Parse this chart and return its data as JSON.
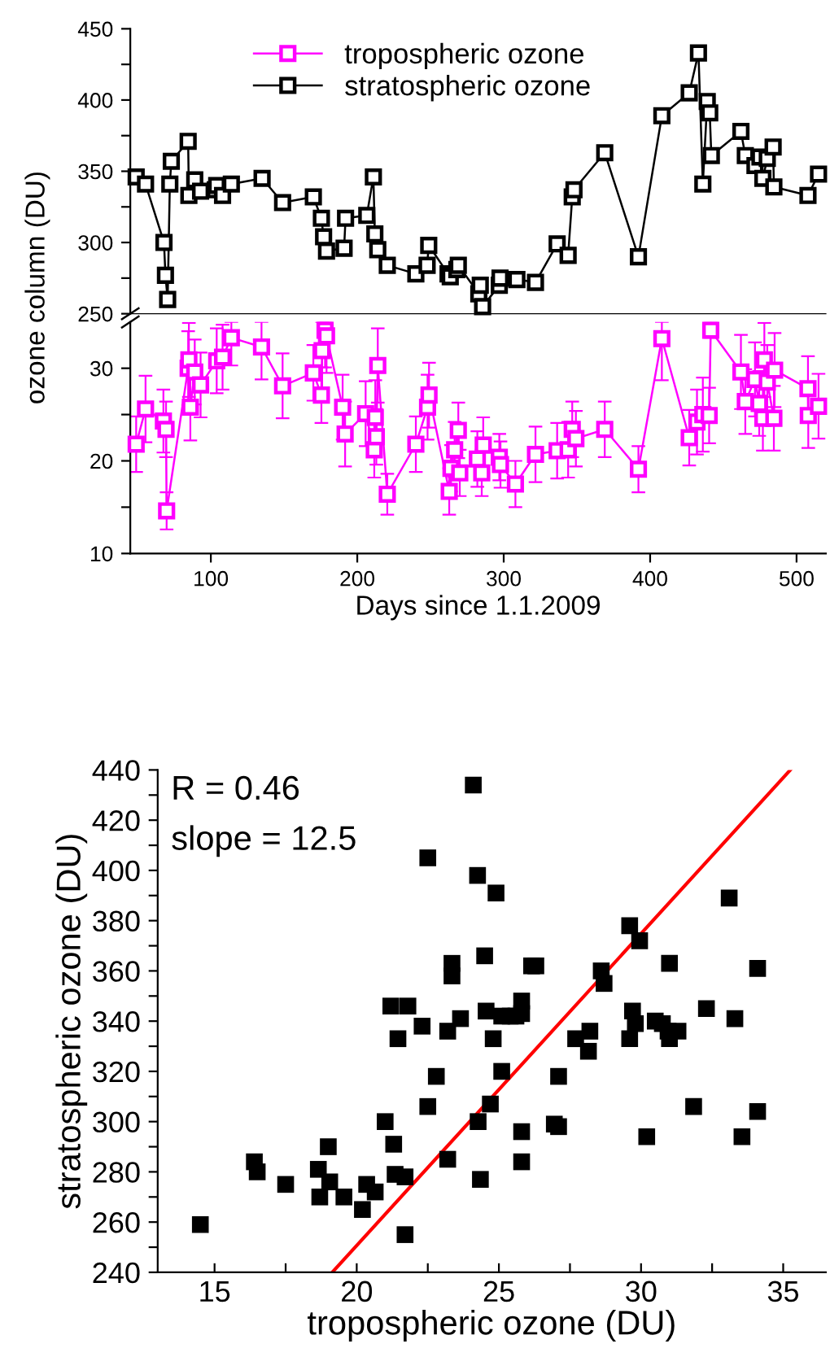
{
  "chart_data": [
    {
      "type": "line",
      "ylabel": "ozone column (DU)",
      "legend": "top",
      "marker": "square",
      "grid": false,
      "tick_labels": "y",
      "xlim": [
        45,
        520
      ],
      "xticks": [
        100,
        200,
        300,
        400,
        500
      ],
      "ylim": [
        250,
        450
      ],
      "yticks": [
        250,
        {
          "value": 275,
          "label": null
        },
        300,
        {
          "value": 325,
          "label": null
        },
        350,
        {
          "value": 375,
          "label": null
        },
        400,
        {
          "value": 425,
          "label": null
        },
        450
      ],
      "series": [
        {
          "name": "stratospheric ozone",
          "color": "#000000",
          "x": [
            49,
            55.4,
            68,
            69,
            70.5,
            72,
            73,
            84.5,
            85,
            89,
            93,
            103,
            104,
            108,
            114,
            135,
            149,
            170,
            175.5,
            177,
            179,
            191,
            192,
            206.5,
            211,
            212,
            214,
            220.5,
            240,
            247.7,
            248.8,
            262,
            263.5,
            268,
            269,
            283,
            284,
            285.6,
            297,
            297.5,
            309,
            321.7,
            336.5,
            344,
            346.8,
            348,
            369,
            392,
            408,
            426.7,
            433,
            436,
            439,
            440.7,
            441.8,
            462,
            465,
            471.6,
            475,
            477,
            480,
            484,
            484.5,
            507.8,
            515
          ],
          "values": [
            346,
            341,
            300,
            277,
            260,
            341,
            357,
            371,
            333,
            344,
            336,
            337,
            340,
            333,
            341,
            345,
            328,
            332,
            317,
            304,
            294,
            296,
            317,
            319,
            346,
            306,
            295,
            284,
            278,
            284,
            298,
            278,
            276,
            281,
            284,
            264,
            270,
            255,
            270,
            275,
            274,
            272,
            299,
            291,
            332,
            337,
            363,
            290,
            389,
            405,
            433,
            341,
            399,
            391,
            361,
            378,
            361,
            354,
            360,
            345,
            359,
            367,
            339,
            333,
            348
          ]
        }
      ]
    },
    {
      "type": "line",
      "xlabel": "Days since 1.1.2009",
      "marker": "square",
      "grid": false,
      "xlim": [
        45,
        520
      ],
      "xticks": [
        100,
        200,
        300,
        400,
        500
      ],
      "ylim": [
        10,
        35
      ],
      "yticks": [
        10,
        {
          "value": 15,
          "label": null
        },
        20,
        {
          "value": 25,
          "label": null
        },
        30
      ],
      "series": [
        {
          "name": "tropospheric ozone",
          "color": "#ff00ff",
          "x": [
            49,
            55.4,
            67.6,
            69.4,
            69.8,
            84.5,
            85,
            86,
            89,
            93,
            104,
            108,
            114,
            134.6,
            149,
            170,
            175.5,
            176,
            178,
            179,
            190,
            191.7,
            205.7,
            211.6,
            212.3,
            213,
            214,
            220.5,
            240,
            248,
            249,
            262.8,
            264,
            266.5,
            269,
            270,
            282,
            285,
            286,
            297,
            297.8,
            308,
            321.7,
            336.5,
            344,
            346.8,
            349.3,
            369,
            392,
            408,
            426.7,
            432,
            436,
            440.3,
            441.4,
            462,
            465,
            471.6,
            474.5,
            477,
            478,
            480,
            484.5,
            485,
            507.8,
            508,
            515
          ],
          "values": [
            21.8,
            25.6,
            24.3,
            23.4,
            14.6,
            30,
            30.9,
            25.8,
            29.6,
            28.2,
            30.8,
            31.2,
            33.3,
            32.3,
            28.1,
            29.5,
            27.1,
            31.9,
            34.1,
            33.5,
            25.8,
            22.9,
            25.1,
            21.2,
            24.7,
            22.6,
            30.3,
            16.4,
            21.8,
            25.8,
            27.1,
            16.7,
            19.2,
            21.2,
            23.3,
            18.7,
            20.2,
            18.7,
            21.7,
            20.4,
            19.6,
            17.5,
            20.7,
            21.1,
            21.2,
            23.4,
            22.4,
            23.4,
            19.1,
            33.2,
            22.5,
            24.2,
            25,
            24.9,
            34.1,
            29.6,
            26.4,
            28.8,
            26.2,
            24.6,
            30.9,
            28.5,
            24.6,
            29.8,
            27.8,
            24.9,
            25.9
          ],
          "errors": [
            3,
            3.6,
            3.4,
            3,
            2,
            4,
            4,
            3.6,
            3.5,
            3.5,
            3.5,
            3.5,
            [
              30.3,
              35
            ],
            [
              28.8,
              35
            ],
            3.5,
            3,
            3,
            [
              27.9,
              35
            ],
            [
              30.1,
              35
            ],
            [
              29.5,
              35
            ],
            3.5,
            3.5,
            3.5,
            3,
            4,
            3,
            4,
            2.2,
            3,
            3.5,
            3.5,
            2.5,
            2.5,
            3,
            3,
            2.5,
            3,
            2.5,
            3,
            2.5,
            2.5,
            2.5,
            3,
            3,
            3,
            3,
            3,
            3,
            2.5,
            [
              28.7,
              35
            ],
            3,
            3.5,
            4,
            3,
            [
              33.3,
              35
            ],
            4,
            3.5,
            4,
            3.5,
            3.5,
            4,
            4,
            3.5,
            4,
            3.5,
            3.5,
            3.5
          ]
        }
      ]
    },
    {
      "type": "scatter",
      "xlabel": "tropospheric ozone (DU)",
      "ylabel": "stratospheric ozone (DU)",
      "grid": false,
      "annotations": [
        "R = 0.46",
        "slope = 12.5"
      ],
      "xlim": [
        13,
        36.5
      ],
      "xticks": [
        15,
        {
          "value": 17.5,
          "label": null
        },
        20,
        {
          "value": 22.5,
          "label": null
        },
        25,
        {
          "value": 27.5,
          "label": null
        },
        30,
        {
          "value": 32.5,
          "label": null
        },
        35
      ],
      "ylim": [
        240,
        440
      ],
      "yticks": [
        240,
        {
          "value": 250,
          "label": null
        },
        260,
        {
          "value": 270,
          "label": null
        },
        280,
        {
          "value": 290,
          "label": null
        },
        300,
        {
          "value": 310,
          "label": null
        },
        320,
        {
          "value": 330,
          "label": null
        },
        340,
        {
          "value": 350,
          "label": null
        },
        360,
        {
          "value": 370,
          "label": null
        },
        380,
        {
          "value": 390,
          "label": null
        },
        400,
        {
          "value": 410,
          "label": null
        },
        420,
        {
          "value": 430,
          "label": null
        },
        440
      ],
      "series": [
        {
          "color": "#000000",
          "marker": "square",
          "x": [
            14.5,
            16.4,
            16.5,
            17.5,
            18.65,
            18.7,
            19.0,
            19.05,
            19.55,
            20.2,
            20.35,
            20.65,
            21.0,
            21.2,
            21.3,
            21.35,
            21.45,
            21.7,
            21.7,
            21.8,
            22.3,
            22.5,
            22.5,
            22.8,
            23.2,
            23.2,
            23.35,
            23.35,
            23.65,
            24.1,
            24.25,
            24.27,
            24.35,
            24.5,
            24.55,
            24.7,
            24.8,
            24.9,
            25.1,
            25.1,
            25.4,
            25.6,
            25.8,
            25.8,
            25.8,
            25.8,
            26.15,
            26.3,
            26.95,
            27.1,
            27.1,
            27.7,
            28.2,
            28.15,
            28.6,
            28.7,
            29.6,
            29.7,
            29.8,
            29.6,
            29.95,
            30.2,
            30.5,
            31.0,
            30.75,
            30.95,
            31.0,
            31.3,
            31.85,
            32.3,
            33.1,
            33.3,
            33.55,
            34.1,
            34.1
          ],
          "values": [
            259,
            284,
            280,
            275,
            281,
            270,
            290,
            276,
            270,
            265,
            275,
            272,
            300,
            346,
            291,
            279,
            333,
            278,
            255,
            346,
            338,
            405,
            306,
            318,
            285,
            336,
            363,
            358,
            341,
            434,
            398,
            300,
            277,
            366,
            344,
            307,
            333,
            391,
            320,
            342,
            342,
            342,
            348,
            343,
            296,
            284,
            362,
            362,
            299,
            298,
            318,
            333,
            336,
            328,
            360,
            355,
            378,
            344,
            339,
            333,
            372,
            294,
            340,
            363,
            339,
            336,
            333,
            336,
            306,
            345,
            389,
            341,
            294,
            361,
            304
          ]
        },
        {
          "type": "line",
          "marker": "none",
          "color": "#ff0000",
          "x": [
            19.14,
            35.25
          ],
          "values": [
            240,
            440
          ]
        }
      ]
    }
  ]
}
